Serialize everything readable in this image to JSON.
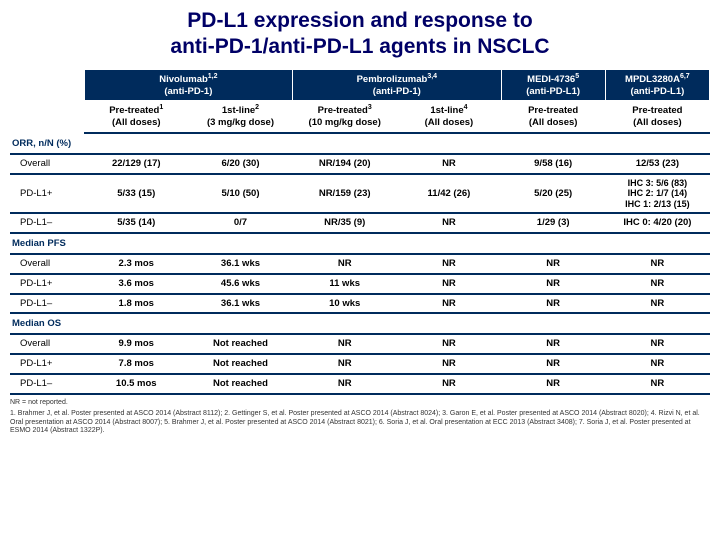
{
  "title_l1": "PD-L1 expression and response to",
  "title_l2": "anti-PD-1/anti-PD-L1 agents in NSCLC",
  "drugs": {
    "nivo": "Nivolumab",
    "nivo_sup": "1,2",
    "nivo_sub": "(anti-PD-1)",
    "pembro": "Pembrolizumab",
    "pembro_sup": "3,4",
    "pembro_sub": "(anti-PD-1)",
    "medi": "MEDI-4736",
    "medi_sup": "5",
    "medi_sub": "(anti-PD-L1)",
    "mpdl": "MPDL3280A",
    "mpdl_sup": "6,7",
    "mpdl_sub": "(anti-PD-L1)"
  },
  "sub": {
    "c1": "Pre-treated",
    "c1_sup": "1",
    "c1_b": "(All doses)",
    "c2": "1st-line",
    "c2_sup": "2",
    "c2_b": "(3 mg/kg dose)",
    "c3": "Pre-treated",
    "c3_sup": "3",
    "c3_b": "(10 mg/kg dose)",
    "c4": "1st-line",
    "c4_sup": "4",
    "c4_b": "(All doses)",
    "c5": "Pre-treated",
    "c5_b": "(All doses)",
    "c6": "Pre-treated",
    "c6_b": "(All doses)"
  },
  "sections": {
    "orr": "ORR, n/N (%)",
    "pfs": "Median PFS",
    "os": "Median OS"
  },
  "rows": {
    "overall": "Overall",
    "pdlp": "PD-L1+",
    "pdlm": "PD-L1–"
  },
  "orr": {
    "overall": [
      "22/129 (17)",
      "6/20 (30)",
      "NR/194 (20)",
      "NR",
      "9/58 (16)",
      "12/53 (23)"
    ],
    "pdlp": [
      "5/33 (15)",
      "5/10 (50)",
      "NR/159 (23)",
      "11/42 (26)",
      "5/20 (25)",
      "IHC 3: 5/6 (83)\nIHC 2: 1/7 (14)\nIHC 1: 2/13 (15)"
    ],
    "pdlm": [
      "5/35 (14)",
      "0/7",
      "NR/35 (9)",
      "NR",
      "1/29 (3)",
      "IHC 0: 4/20 (20)"
    ]
  },
  "pfs": {
    "overall": [
      "2.3 mos",
      "36.1 wks",
      "NR",
      "NR",
      "NR",
      "NR"
    ],
    "pdlp": [
      "3.6 mos",
      "45.6 wks",
      "11 wks",
      "NR",
      "NR",
      "NR"
    ],
    "pdlm": [
      "1.8 mos",
      "36.1 wks",
      "10 wks",
      "NR",
      "NR",
      "NR"
    ]
  },
  "os": {
    "overall": [
      "9.9 mos",
      "Not reached",
      "NR",
      "NR",
      "NR",
      "NR"
    ],
    "pdlp": [
      "7.8 mos",
      "Not reached",
      "NR",
      "NR",
      "NR",
      "NR"
    ],
    "pdlm": [
      "10.5 mos",
      "Not reached",
      "NR",
      "NR",
      "NR",
      "NR"
    ]
  },
  "footnotes": {
    "nr": "NR = not reported.",
    "refs": "1. Brahmer J, et al. Poster presented at ASCO 2014 (Abstract 8112); 2. Gettinger S, et al. Poster presented at ASCO 2014 (Abstract 8024); 3. Garon E, et al. Poster presented at ASCO 2014 (Abstract 8020); 4. Rizvi N, et al. Oral presentation at ASCO 2014 (Abstract 8007); 5. Brahmer J, et al. Poster presented at ASCO 2014 (Abstract 8021); 6. Soria J, et al. Oral presentation at ECC 2013 (Abstract 3408); 7. Soria J, et al. Poster presented at ESMO 2014 (Abstract 1322P)."
  },
  "colors": {
    "header_bg": "#002b5c",
    "title_color": "#000066",
    "rule": "#002b5c"
  }
}
